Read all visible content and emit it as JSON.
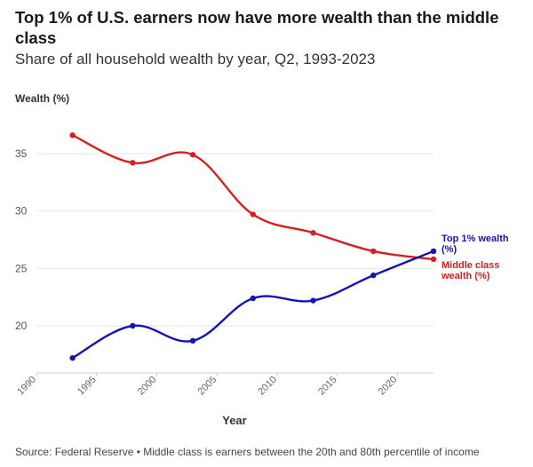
{
  "title": "Top 1% of U.S. earners now have more wealth than the middle class",
  "subtitle": "Share of all household wealth by year, Q2, 1993-2023",
  "source": "Source: Federal Reserve • Middle class is earners between the 20th and 80th percentile of income",
  "chart_data": {
    "type": "line",
    "title": "Top 1% of U.S. earners now have more wealth than the middle class",
    "subtitle": "Share of all household wealth by year, Q2, 1993-2023",
    "xlabel": "Year",
    "ylabel": "Wealth (%)",
    "xlim": [
      1990,
      2023
    ],
    "ylim": [
      16,
      38
    ],
    "x_ticks": [
      1990,
      1995,
      2000,
      2005,
      2010,
      2015,
      2020
    ],
    "y_ticks": [
      20,
      25,
      30,
      35
    ],
    "grid": "horizontal",
    "legend": "inline labels at right end of lines",
    "series": [
      {
        "name": "Middle class wealth (%)",
        "color": "#d42020",
        "x": [
          1993,
          1998,
          2003,
          2008,
          2013,
          2018,
          2023
        ],
        "values": [
          36.6,
          34.2,
          34.9,
          29.7,
          28.1,
          26.5,
          25.8
        ]
      },
      {
        "name": "Top 1% wealth (%)",
        "color": "#1414b4",
        "x": [
          1993,
          1998,
          2003,
          2008,
          2013,
          2018,
          2023
        ],
        "values": [
          17.2,
          20.0,
          18.7,
          22.4,
          22.2,
          24.4,
          26.5
        ]
      }
    ],
    "series_labels": [
      {
        "line1": "Top 1% wealth",
        "line2": "(%)"
      },
      {
        "line1": "Middle class",
        "line2": "wealth (%)"
      }
    ]
  }
}
